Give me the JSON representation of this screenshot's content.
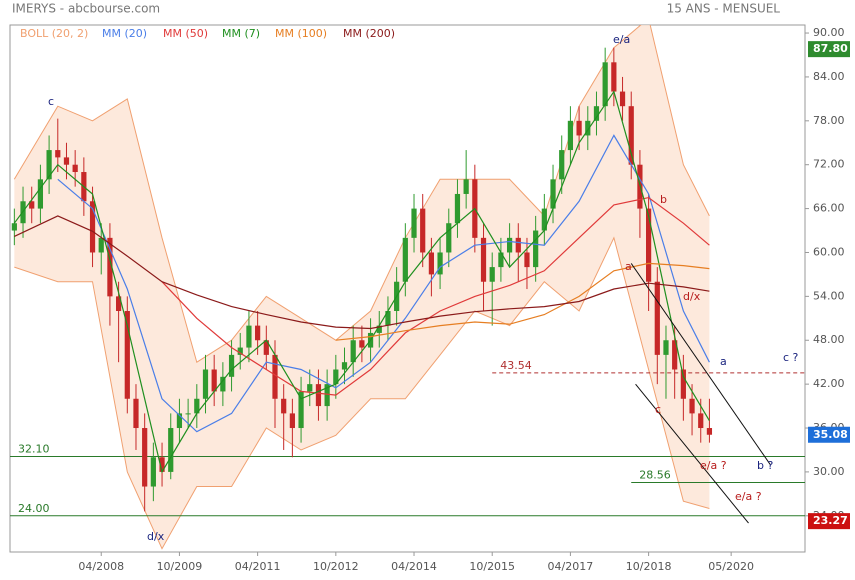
{
  "chart_data": {
    "type": "candlestick",
    "title": "IMERYS - abcbourse.com",
    "subtitle": "15 ANS - MENSUEL",
    "xlim": [
      "07/2006",
      "10/2021"
    ],
    "xticks": [
      "04/2008",
      "10/2009",
      "04/2011",
      "10/2012",
      "04/2014",
      "10/2015",
      "04/2017",
      "10/2018",
      "05/2020"
    ],
    "ylim": [
      19.05,
      91.1
    ],
    "yticks": [
      {
        "value": 24,
        "label": "24.00"
      },
      {
        "value": 30,
        "label": "30.00"
      },
      {
        "value": 36,
        "label": "36.00"
      },
      {
        "value": 42,
        "label": "42.00"
      },
      {
        "value": 48,
        "label": "48.00"
      },
      {
        "value": 54,
        "label": "54.00"
      },
      {
        "value": 60,
        "label": "60.00"
      },
      {
        "value": 66,
        "label": "66.00"
      },
      {
        "value": 72,
        "label": "72.00"
      },
      {
        "value": 78,
        "label": "78.00"
      },
      {
        "value": 84,
        "label": "84.00"
      },
      {
        "value": 90,
        "label": "90.00"
      }
    ],
    "candles": {
      "up_color": "#2f9a2f",
      "down_color": "#c62828",
      "x": [
        "08/2006",
        "10/2006",
        "12/2006",
        "02/2007",
        "04/2007",
        "06/2007",
        "08/2007",
        "10/2007",
        "12/2007",
        "02/2008",
        "04/2008",
        "06/2008",
        "08/2008",
        "10/2008",
        "12/2008",
        "02/2009",
        "04/2009",
        "06/2009",
        "08/2009",
        "10/2009",
        "12/2009",
        "02/2010",
        "04/2010",
        "06/2010",
        "08/2010",
        "10/2010",
        "12/2010",
        "02/2011",
        "04/2011",
        "06/2011",
        "08/2011",
        "10/2011",
        "12/2011",
        "02/2012",
        "04/2012",
        "06/2012",
        "08/2012",
        "10/2012",
        "12/2012",
        "02/2013",
        "04/2013",
        "06/2013",
        "08/2013",
        "10/2013",
        "12/2013",
        "02/2014",
        "04/2014",
        "06/2014",
        "08/2014",
        "10/2014",
        "12/2014",
        "02/2015",
        "04/2015",
        "06/2015",
        "08/2015",
        "10/2015",
        "12/2015",
        "02/2016",
        "04/2016",
        "06/2016",
        "08/2016",
        "10/2016",
        "12/2016",
        "02/2017",
        "04/2017",
        "06/2017",
        "08/2017",
        "10/2017",
        "12/2017",
        "02/2018",
        "04/2018",
        "06/2018",
        "08/2018",
        "10/2018",
        "12/2018",
        "02/2019",
        "04/2019",
        "06/2019",
        "08/2019",
        "10/2019",
        "12/2019"
      ],
      "open": [
        63,
        64,
        67,
        66,
        70,
        74,
        73,
        72,
        71,
        67,
        60,
        62,
        54,
        52,
        40,
        36,
        28,
        32,
        30,
        36,
        38,
        38,
        40,
        44,
        41,
        43,
        46,
        47,
        50,
        48,
        46,
        40,
        38,
        36,
        41,
        42,
        39,
        42,
        44,
        45,
        48,
        47,
        49,
        50,
        52,
        56,
        62,
        66,
        60,
        57,
        60,
        64,
        68,
        70,
        62,
        56,
        58,
        60,
        62,
        60,
        58,
        63,
        66,
        70,
        74,
        78,
        76,
        78,
        80,
        86,
        82,
        80,
        72,
        66,
        56,
        46,
        48,
        44,
        40,
        38,
        36
      ],
      "high": [
        66,
        69,
        69,
        72,
        76,
        78.3,
        75,
        74,
        73,
        69,
        64,
        64,
        56,
        54,
        42,
        38,
        34,
        34,
        38,
        40,
        40,
        42,
        46,
        46,
        45,
        48,
        49,
        52,
        52,
        50,
        48,
        42,
        40,
        43,
        44,
        44,
        44,
        46,
        47,
        50,
        50,
        51,
        52,
        54,
        58,
        64,
        68,
        68,
        62,
        62,
        66,
        70,
        74,
        72,
        64,
        60,
        62,
        64,
        64,
        62,
        65,
        68,
        72,
        76,
        80,
        80,
        80,
        82,
        88,
        88,
        84,
        82,
        74,
        68,
        58,
        50,
        50,
        46,
        42,
        40,
        40
      ],
      "low": [
        61,
        62,
        64,
        64,
        68,
        71,
        70,
        69,
        65,
        58,
        57,
        50,
        45,
        38,
        33,
        24.6,
        26,
        28,
        29,
        34,
        36,
        36,
        38,
        39,
        39,
        41,
        44,
        45,
        46,
        44,
        36,
        33,
        32,
        34,
        39,
        37,
        37,
        40,
        42,
        43,
        45,
        45,
        47,
        48,
        50,
        54,
        60,
        58,
        54,
        55,
        58,
        62,
        66,
        60,
        52,
        50,
        56,
        58,
        56,
        55,
        56,
        61,
        64,
        68,
        72,
        74,
        74,
        76,
        78,
        80,
        78,
        70,
        62,
        52,
        42,
        40,
        40,
        37,
        35,
        34,
        34
      ],
      "close": [
        64,
        67,
        66,
        70,
        74,
        73,
        72,
        71,
        67,
        60,
        62,
        54,
        52,
        40,
        36,
        28,
        32,
        30,
        36,
        38,
        38,
        40,
        44,
        41,
        43,
        46,
        47,
        50,
        48,
        46,
        40,
        38,
        36,
        41,
        42,
        39,
        42,
        44,
        45,
        48,
        47,
        49,
        50,
        52,
        56,
        62,
        66,
        60,
        57,
        60,
        64,
        68,
        70,
        62,
        56,
        58,
        60,
        62,
        60,
        58,
        63,
        66,
        70,
        74,
        78,
        76,
        78,
        80,
        86,
        82,
        80,
        72,
        66,
        56,
        46,
        48,
        44,
        40,
        38,
        36,
        35.08
      ]
    },
    "indicators": {
      "x": [
        "08/2006",
        "06/2007",
        "02/2008",
        "10/2008",
        "06/2009",
        "02/2010",
        "10/2010",
        "06/2011",
        "02/2012",
        "10/2012",
        "06/2013",
        "02/2014",
        "10/2014",
        "06/2015",
        "02/2016",
        "10/2016",
        "06/2017",
        "02/2018",
        "10/2018",
        "06/2019",
        "12/2019"
      ],
      "bollinger": {
        "name": "BOLL (20, 2)",
        "color": "#f0a070",
        "fill": "#fde3d3",
        "upper": [
          70,
          80,
          78,
          81,
          62,
          45,
          48,
          54,
          51,
          48,
          52,
          62,
          70,
          70,
          70,
          65,
          80,
          88,
          92,
          72,
          65
        ],
        "lower": [
          58,
          56,
          56,
          30,
          19.5,
          28,
          28,
          36,
          33,
          35,
          40,
          40,
          46,
          52,
          50,
          56,
          52,
          62,
          44,
          26,
          25
        ]
      },
      "series": [
        {
          "name": "MM (20)",
          "color": "#4a7ee8",
          "values": [
            null,
            70,
            66,
            55,
            40,
            35.5,
            38,
            45,
            44,
            41.5,
            45,
            51,
            58,
            61,
            61.5,
            61,
            67,
            76,
            68,
            52,
            45
          ]
        },
        {
          "name": "MM (50)",
          "color": "#e03a3a",
          "values": [
            null,
            null,
            null,
            null,
            56,
            51,
            47,
            44,
            41,
            40.5,
            44,
            49,
            52,
            54,
            55.5,
            57.5,
            62,
            66.5,
            67.5,
            64,
            61
          ]
        },
        {
          "name": "MM (7)",
          "color": "#1f8f1f",
          "values": [
            64,
            72,
            68,
            50,
            30,
            38,
            44,
            48,
            40,
            42,
            48,
            56,
            62,
            66,
            58,
            63,
            75,
            82,
            65,
            43,
            37
          ]
        },
        {
          "name": "MM (100)",
          "color": "#e67e22",
          "values": [
            null,
            null,
            null,
            null,
            null,
            null,
            null,
            null,
            null,
            48,
            48.5,
            49.3,
            50,
            50.5,
            50.2,
            51.5,
            54,
            57.5,
            58.5,
            58.2,
            57.8
          ]
        },
        {
          "name": "MM (200)",
          "color": "#8b1a1a",
          "values": [
            62.2,
            65,
            62.9,
            59.5,
            56,
            54.2,
            52.6,
            51.5,
            50.5,
            49.8,
            49.6,
            50.5,
            51.3,
            51.9,
            52.3,
            52.6,
            53.3,
            55,
            55.8,
            55.3,
            54.7
          ]
        }
      ]
    },
    "levels": [
      {
        "value": 32.1,
        "label": "32.10",
        "color": "#2a7a2a",
        "from": "07/2006"
      },
      {
        "value": 24,
        "label": "24.00",
        "color": "#2a7a2a",
        "from": "07/2006"
      },
      {
        "value": 28.56,
        "label": "28.56",
        "color": "#2a7a2a",
        "from": "06/2018"
      },
      {
        "value": 43.54,
        "label": "43.54",
        "color": "#b03030",
        "from": "10/2015",
        "dashed": true
      }
    ],
    "price_tags": [
      {
        "value": 87.8,
        "label": "87.80",
        "color": "#2e8b2e"
      },
      {
        "value": 35.08,
        "label": "35.08",
        "color": "#1e6fd9"
      },
      {
        "value": 23.27,
        "label": "23.27",
        "color": "#cc1111"
      }
    ],
    "trend_lines": [
      {
        "x": [
          "06/2018",
          "02/2021"
        ],
        "values": [
          58.5,
          31
        ]
      },
      {
        "x": [
          "07/2018",
          "09/2020"
        ],
        "values": [
          42,
          23
        ]
      }
    ],
    "annotations": [
      {
        "text": "c",
        "color": "#1a237e"
      },
      {
        "text": "d/x",
        "color": "#1a237e"
      },
      {
        "text": "e/a",
        "color": "#1a237e"
      },
      {
        "text": "a",
        "color": "#b71c1c"
      },
      {
        "text": "b",
        "color": "#b71c1c"
      },
      {
        "text": "d/x",
        "color": "#b71c1c"
      },
      {
        "text": "c",
        "color": "#b71c1c"
      },
      {
        "text": "e/a ?",
        "color": "#b71c1c"
      },
      {
        "text": "e/a ?",
        "color": "#b71c1c"
      },
      {
        "text": "a",
        "color": "#1a237e"
      },
      {
        "text": "b ?",
        "color": "#1a237e"
      },
      {
        "text": "c ?",
        "color": "#1a237e"
      }
    ]
  }
}
